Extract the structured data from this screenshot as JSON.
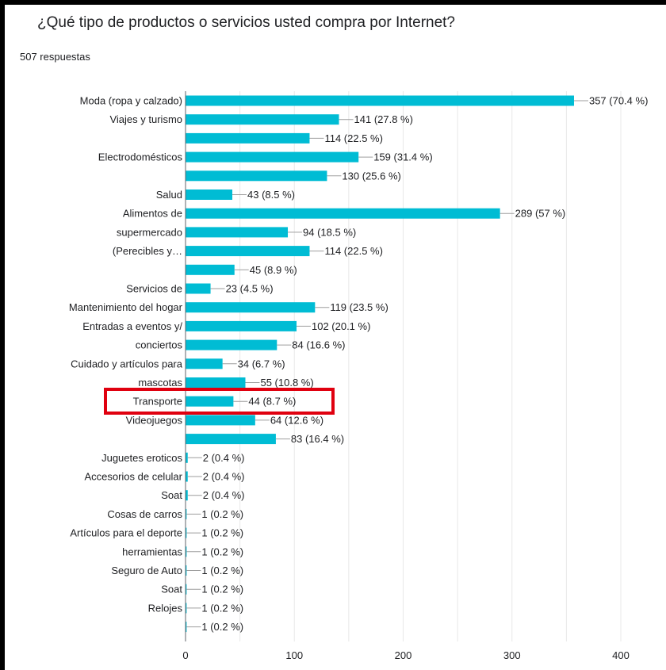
{
  "question": "¿Qué tipo de productos o servicios usted compra por Internet?",
  "responses": "507 respuestas",
  "colors": {
    "bar": "#00bcd4",
    "highlight": "#e0000f",
    "grid": "#e8e8e8",
    "text": "#202124",
    "frame": "#000000"
  },
  "chart_data": {
    "type": "bar",
    "orientation": "horizontal",
    "categories": [
      "Moda (ropa y calzado)",
      "Viajes y turismo",
      "",
      "Electrodomésticos",
      "",
      "Salud",
      "Alimentos de",
      "supermercado",
      "(Perecibles y…",
      "",
      "Servicios de",
      "Mantenimiento del hogar",
      "Entradas a eventos y/",
      "conciertos",
      "Cuidado y artículos para",
      "mascotas",
      "Transporte",
      "Videojuegos",
      "",
      "Juguetes eroticos",
      "Accesorios de celular",
      "Soat",
      "Cosas de carros",
      "Artículos para el deporte",
      "herramientas",
      "Seguro de Auto",
      "Soat",
      "Relojes",
      ""
    ],
    "values": [
      357,
      141,
      114,
      159,
      130,
      43,
      289,
      94,
      114,
      45,
      23,
      119,
      102,
      84,
      34,
      55,
      44,
      64,
      83,
      2,
      2,
      2,
      1,
      1,
      1,
      1,
      1,
      1,
      1
    ],
    "data_labels": [
      "357 (70.4 %)",
      "141 (27.8 %)",
      "114 (22.5 %)",
      "159 (31.4 %)",
      "130 (25.6 %)",
      "43 (8.5 %)",
      "289 (57 %)",
      "94 (18.5 %)",
      "114 (22.5 %)",
      "45 (8.9 %)",
      "23 (4.5 %)",
      "119 (23.5 %)",
      "102 (20.1 %)",
      "84 (16.6 %)",
      "34 (6.7 %)",
      "55 (10.8 %)",
      "44 (8.7 %)",
      "64 (12.6 %)",
      "83 (16.4 %)",
      "2 (0.4 %)",
      "2 (0.4 %)",
      "2 (0.4 %)",
      "1 (0.2 %)",
      "1 (0.2 %)",
      "1 (0.2 %)",
      "1 (0.2 %)",
      "1 (0.2 %)",
      "1 (0.2 %)",
      "1 (0.2 %)"
    ],
    "xlim": [
      0,
      400
    ],
    "x_ticks": [
      "0",
      "100",
      "200",
      "300",
      "400"
    ],
    "grid": true,
    "highlighted_category": "Transporte"
  }
}
